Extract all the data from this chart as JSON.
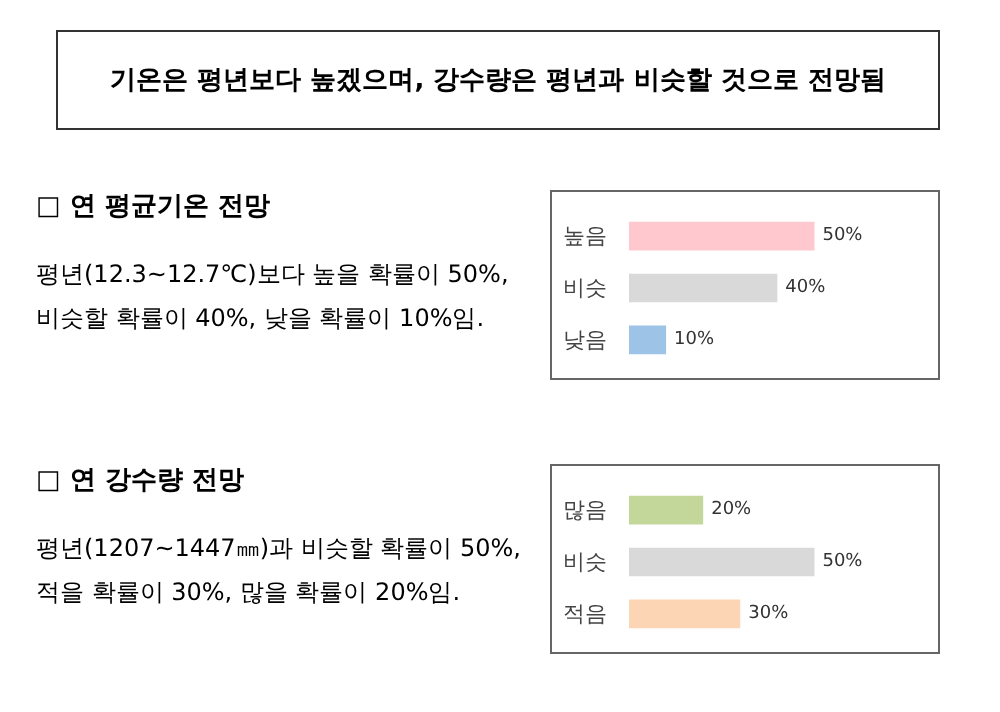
{
  "chart_data": [
    {
      "type": "other",
      "title": "기온은 평년보다 높겠으며, 강수량은 평년과 비슷할 것으로 전망됨"
    },
    {
      "type": "other",
      "title": "□ 연 평균기온 전망",
      "annotations": [
        "평년(12.3~12.7℃)보다 높을 확률이 50%,",
        "비슷할 확률이 40%, 낮을 확률이 10%임."
      ]
    },
    {
      "type": "bar",
      "orientation": "horizontal",
      "tick_labels": "y",
      "categories": [
        "높음",
        "비슷",
        "낮음"
      ],
      "values": [
        50,
        40,
        10
      ],
      "colors": [
        "#ffc7ce",
        "#d9d9d9",
        "#9dc3e6"
      ],
      "value_labels": [
        "50%",
        "40%",
        "10%"
      ]
    },
    {
      "type": "other",
      "title": "□ 연 강수량 전망",
      "annotations": [
        "평년(1207~1447㎜)과 비슷할 확률이 50%,",
        "적을 확률이 30%, 많을 확률이 20%임."
      ]
    },
    {
      "type": "bar",
      "orientation": "horizontal",
      "tick_labels": "y",
      "categories": [
        "많음",
        "비슷",
        "적음"
      ],
      "values": [
        20,
        50,
        30
      ],
      "colors": [
        "#c4d79b",
        "#d9d9d9",
        "#fcd5b4"
      ],
      "value_labels": [
        "20%",
        "50%",
        "30%"
      ]
    }
  ]
}
